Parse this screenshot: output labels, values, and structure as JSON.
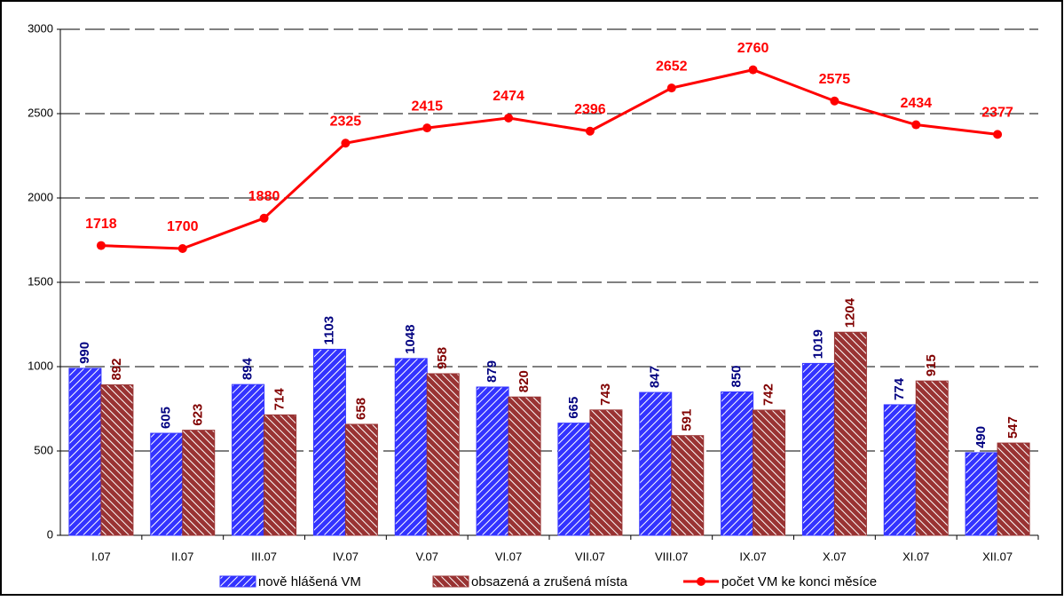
{
  "chart_data": {
    "type": "bar",
    "categories": [
      "I.07",
      "II.07",
      "III.07",
      "IV.07",
      "V.07",
      "VI.07",
      "VII.07",
      "VIII.07",
      "IX.07",
      "X.07",
      "XI.07",
      "XII.07"
    ],
    "series": [
      {
        "name": "nově hlášená VM",
        "type": "bar",
        "color": "#3333ff",
        "label_color": "#000080",
        "values": [
          990,
          605,
          894,
          1103,
          1048,
          879,
          665,
          847,
          850,
          1019,
          774,
          490
        ]
      },
      {
        "name": "obsazená a zrušená místa",
        "type": "bar",
        "color": "#993333",
        "label_color": "#800000",
        "values": [
          892,
          623,
          714,
          658,
          958,
          820,
          743,
          591,
          742,
          1204,
          915,
          547
        ]
      },
      {
        "name": "počet VM ke konci měsíce",
        "type": "line",
        "color": "#ff0000",
        "label_color": "#ff0000",
        "values": [
          1718,
          1700,
          1880,
          2325,
          2415,
          2474,
          2396,
          2652,
          2760,
          2575,
          2434,
          2377
        ]
      }
    ],
    "ylim": [
      0,
      3000
    ],
    "yticks": [
      0,
      500,
      1000,
      1500,
      2000,
      2500,
      3000
    ],
    "grid": true,
    "legend": "bottom"
  }
}
